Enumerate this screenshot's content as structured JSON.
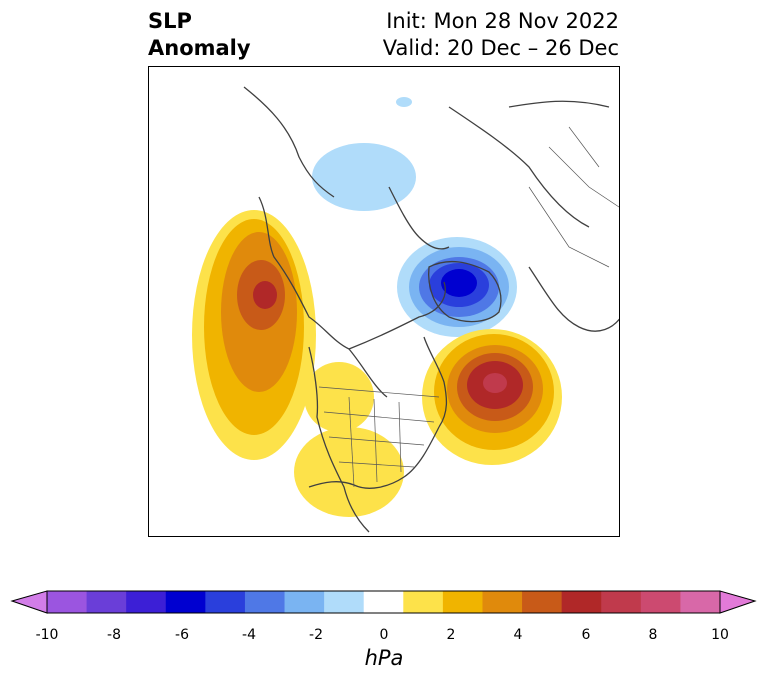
{
  "header": {
    "left_line1": "SLP",
    "left_line2": "Anomaly",
    "right_line1": "Init: Mon 28 Nov 2022",
    "right_line2": "Valid: 20 Dec – 26 Dec"
  },
  "colorbar": {
    "unit": "hPa",
    "ticks": [
      "-10",
      "-8",
      "-6",
      "-4",
      "-2",
      "0",
      "2",
      "4",
      "6",
      "8",
      "10"
    ],
    "colors": [
      "#d27de8",
      "#9b55e0",
      "#6a3ed8",
      "#3c1fd6",
      "#0000d0",
      "#2a3fdc",
      "#4f78e6",
      "#7ab4f2",
      "#b0dcfa",
      "#ffffff",
      "#fde24a",
      "#f0b400",
      "#e08a0c",
      "#c85a18",
      "#b02828",
      "#c03a4c",
      "#cc4a70",
      "#d868a8",
      "#e27ad8"
    ]
  }
}
